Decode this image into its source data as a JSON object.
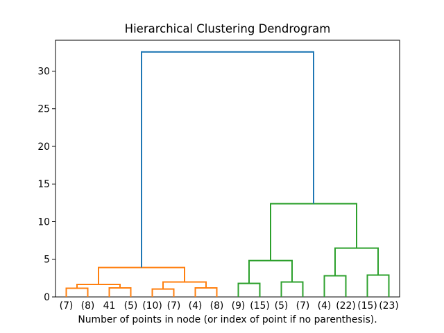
{
  "window": {
    "background": "#ffffff"
  },
  "chart_data": {
    "type": "dendrogram",
    "title": "Hierarchical Clustering Dendrogram",
    "xlabel": "Number of points in node (or index of point if no parenthesis).",
    "ylabel": "",
    "xlim": [
      0,
      160
    ],
    "ylim": [
      0,
      34.1
    ],
    "yticks": [
      0,
      5,
      10,
      15,
      20,
      25,
      30
    ],
    "grid": false,
    "legend": null,
    "leaves": [
      {
        "label": "(7)",
        "x": 5
      },
      {
        "label": "(8)",
        "x": 15
      },
      {
        "label": "41",
        "x": 25
      },
      {
        "label": "(5)",
        "x": 35
      },
      {
        "label": "(10)",
        "x": 45
      },
      {
        "label": "(7)",
        "x": 55
      },
      {
        "label": "(4)",
        "x": 65
      },
      {
        "label": "(8)",
        "x": 75
      },
      {
        "label": "(9)",
        "x": 85
      },
      {
        "label": "(15)",
        "x": 95
      },
      {
        "label": "(5)",
        "x": 105
      },
      {
        "label": "(7)",
        "x": 115
      },
      {
        "label": "(4)",
        "x": 125
      },
      {
        "label": "(22)",
        "x": 135
      },
      {
        "label": "(15)",
        "x": 145
      },
      {
        "label": "(23)",
        "x": 155
      }
    ],
    "links": [
      {
        "x1": 5,
        "h1": 0,
        "x2": 15,
        "h2": 0,
        "h": 1.15,
        "color": "#ff7f0e"
      },
      {
        "x1": 25,
        "h1": 0,
        "x2": 35,
        "h2": 0,
        "h": 1.2,
        "color": "#ff7f0e"
      },
      {
        "x1": 10,
        "h1": 1.15,
        "x2": 30,
        "h2": 1.2,
        "h": 1.66,
        "color": "#ff7f0e"
      },
      {
        "x1": 45,
        "h1": 0,
        "x2": 55,
        "h2": 0,
        "h": 1.05,
        "color": "#ff7f0e"
      },
      {
        "x1": 65,
        "h1": 0,
        "x2": 75,
        "h2": 0,
        "h": 1.2,
        "color": "#ff7f0e"
      },
      {
        "x1": 50,
        "h1": 1.05,
        "x2": 70,
        "h2": 1.2,
        "h": 1.98,
        "color": "#ff7f0e"
      },
      {
        "x1": 20,
        "h1": 1.66,
        "x2": 60,
        "h2": 1.98,
        "h": 3.91,
        "color": "#ff7f0e"
      },
      {
        "x1": 85,
        "h1": 0,
        "x2": 95,
        "h2": 0,
        "h": 1.8,
        "color": "#2ca02c"
      },
      {
        "x1": 105,
        "h1": 0,
        "x2": 115,
        "h2": 0,
        "h": 1.98,
        "color": "#2ca02c"
      },
      {
        "x1": 90,
        "h1": 1.8,
        "x2": 110,
        "h2": 1.98,
        "h": 4.83,
        "color": "#2ca02c"
      },
      {
        "x1": 125,
        "h1": 0,
        "x2": 135,
        "h2": 0,
        "h": 2.81,
        "color": "#2ca02c"
      },
      {
        "x1": 145,
        "h1": 0,
        "x2": 155,
        "h2": 0,
        "h": 2.9,
        "color": "#2ca02c"
      },
      {
        "x1": 130,
        "h1": 2.81,
        "x2": 150,
        "h2": 2.9,
        "h": 6.49,
        "color": "#2ca02c"
      },
      {
        "x1": 100,
        "h1": 4.83,
        "x2": 140,
        "h2": 6.49,
        "h": 12.39,
        "color": "#2ca02c"
      },
      {
        "x1": 40,
        "h1": 3.91,
        "x2": 120,
        "h2": 12.39,
        "h": 32.55,
        "color": "#1f77b4"
      }
    ],
    "colors": {
      "cluster_left": "#ff7f0e",
      "cluster_right": "#2ca02c",
      "root_link": "#1f77b4",
      "axis": "#000000",
      "background": "#ffffff"
    },
    "line_width": 2
  }
}
